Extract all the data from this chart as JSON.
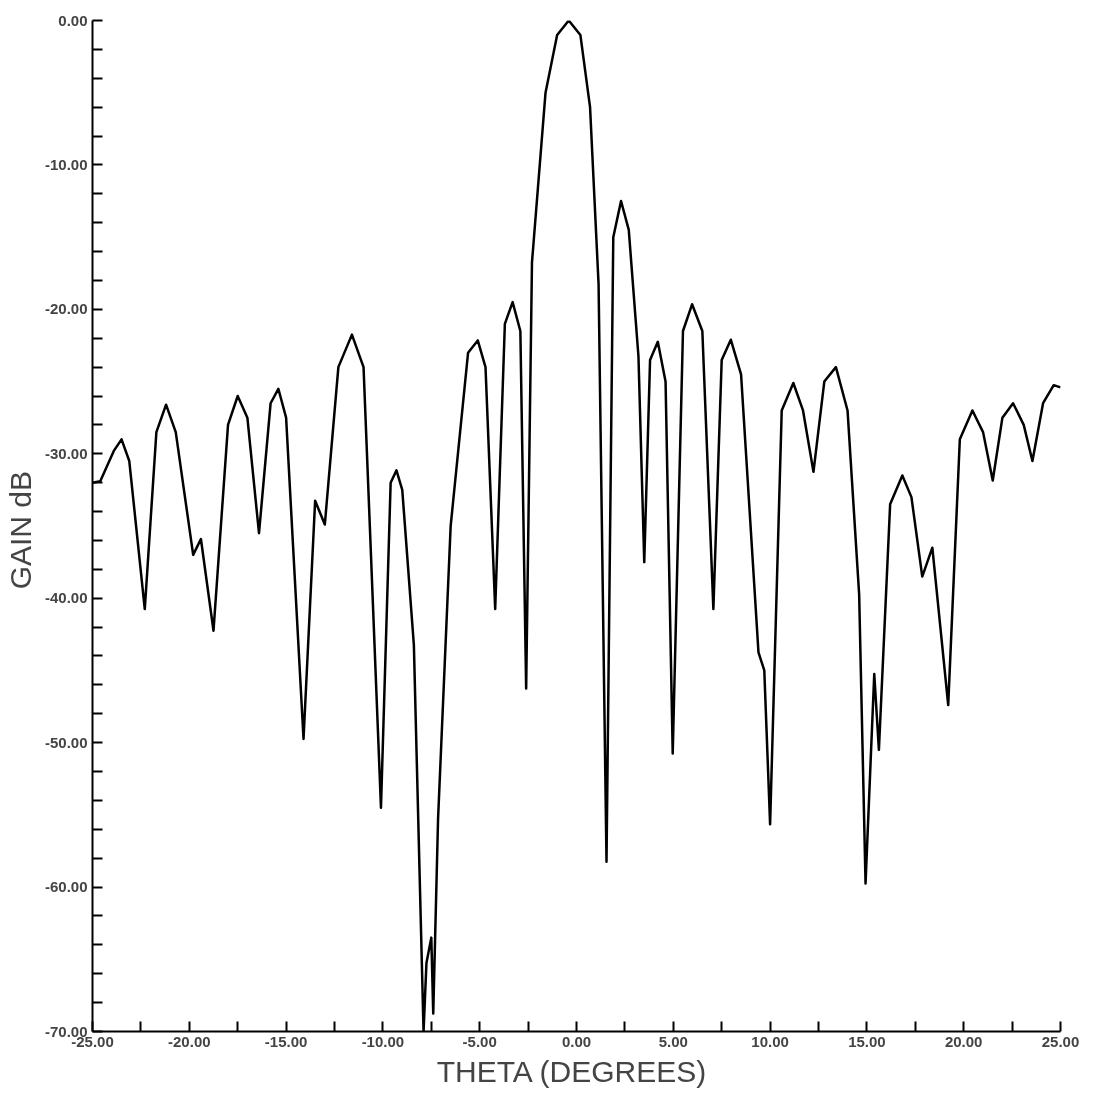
{
  "chart_data": {
    "type": "line",
    "xlabel": "THETA  (DEGREES)",
    "ylabel": "GAIN  dB",
    "x": [
      -25,
      -24.6,
      -23.9,
      -23.5,
      -23.1,
      -22.3,
      -21.7,
      -21.2,
      -20.7,
      -19.8,
      -19.4,
      -18.75,
      -18.0,
      -17.5,
      -17.0,
      -16.4,
      -15.8,
      -15.4,
      -15.0,
      -14.1,
      -13.5,
      -13.0,
      -12.3,
      -11.6,
      -11.0,
      -10.1,
      -9.6,
      -9.3,
      -9.0,
      -8.4,
      -7.9,
      -7.75,
      -7.5,
      -7.4,
      -7.15,
      -6.5,
      -5.6,
      -5.1,
      -4.7,
      -4.2,
      -3.7,
      -3.3,
      -2.9,
      -2.6,
      -2.3,
      -1.6,
      -1.0,
      -0.4,
      0.2,
      0.7,
      1.14,
      1.55,
      1.9,
      2.3,
      2.7,
      3.2,
      3.5,
      3.8,
      4.2,
      4.6,
      4.97,
      5.5,
      5.97,
      6.5,
      7.07,
      7.5,
      7.97,
      8.5,
      9.4,
      9.7,
      10.0,
      10.6,
      11.2,
      11.7,
      12.24,
      12.8,
      13.4,
      14.0,
      14.6,
      14.93,
      15.38,
      15.62,
      16.2,
      16.83,
      17.3,
      17.86,
      18.38,
      19.2,
      19.8,
      20.45,
      21.0,
      21.5,
      22.0,
      22.55,
      23.1,
      23.55,
      24.1,
      24.65,
      25
    ],
    "values": [
      -32.0,
      -31.9,
      -29.8,
      -29.0,
      -30.5,
      -40.75,
      -28.5,
      -26.6,
      -28.5,
      -37.0,
      -35.9,
      -42.25,
      -28.0,
      -26.0,
      -27.5,
      -35.5,
      -26.5,
      -25.5,
      -27.5,
      -49.75,
      -33.25,
      -34.9,
      -24.0,
      -21.75,
      -24.0,
      -54.5,
      -32.0,
      -31.15,
      -32.5,
      -43.25,
      -70,
      -65.25,
      -63.5,
      -68.75,
      -55.25,
      -35.0,
      -23.0,
      -22.15,
      -24.0,
      -40.75,
      -21.0,
      -19.5,
      -21.5,
      -46.25,
      -16.75,
      -5.0,
      -1.0,
      0,
      -1.0,
      -6.0,
      -18.25,
      -58.25,
      -15.0,
      -12.5,
      -14.5,
      -23.25,
      -37.5,
      -23.5,
      -22.25,
      -25.0,
      -50.75,
      -21.5,
      -19.65,
      -21.5,
      -40.75,
      -23.5,
      -22.1,
      -24.5,
      -43.75,
      -45.0,
      -55.65,
      -27.0,
      -25.1,
      -27.0,
      -31.25,
      -25.0,
      -24.0,
      -27.0,
      -39.75,
      -59.75,
      -45.25,
      -50.5,
      -33.5,
      -31.5,
      -33.0,
      -38.5,
      -36.5,
      -47.4,
      -29.0,
      -27.0,
      -28.5,
      -31.85,
      -27.5,
      -26.5,
      -28.0,
      -30.5,
      -26.5,
      -25.25,
      -25.4
    ],
    "color": "#000000",
    "line_style": "solid",
    "grid": false,
    "xlim": [
      -25,
      25
    ],
    "ylim": [
      -70,
      0
    ],
    "xticks": [
      {
        "value": -25,
        "label": "-25.00"
      },
      {
        "value": -22.5,
        "label": null
      },
      {
        "value": -20,
        "label": "-20.00"
      },
      {
        "value": -17.5,
        "label": null
      },
      {
        "value": -15,
        "label": "-15.00"
      },
      {
        "value": -12.5,
        "label": null
      },
      {
        "value": -10,
        "label": "-10.00"
      },
      {
        "value": -7.5,
        "label": null
      },
      {
        "value": -5,
        "label": "-5.00"
      },
      {
        "value": -2.5,
        "label": null
      },
      {
        "value": 0,
        "label": "0.00"
      },
      {
        "value": 2.5,
        "label": null
      },
      {
        "value": 5,
        "label": "5.00"
      },
      {
        "value": 7.5,
        "label": null
      },
      {
        "value": 10,
        "label": "10.00"
      },
      {
        "value": 12.5,
        "label": null
      },
      {
        "value": 15,
        "label": "15.00"
      },
      {
        "value": 17.5,
        "label": null
      },
      {
        "value": 20,
        "label": "20.00"
      },
      {
        "value": 22.5,
        "label": null
      },
      {
        "value": 25,
        "label": "25.00"
      }
    ],
    "yticks": [
      {
        "value": 0,
        "label": "0.00"
      },
      {
        "value": -2,
        "label": null
      },
      {
        "value": -4,
        "label": null
      },
      {
        "value": -6,
        "label": null
      },
      {
        "value": -8,
        "label": null
      },
      {
        "value": -10,
        "label": "-10.00"
      },
      {
        "value": -12,
        "label": null
      },
      {
        "value": -14,
        "label": null
      },
      {
        "value": -16,
        "label": null
      },
      {
        "value": -18,
        "label": null
      },
      {
        "value": -20,
        "label": "-20.00"
      },
      {
        "value": -22,
        "label": null
      },
      {
        "value": -24,
        "label": null
      },
      {
        "value": -26,
        "label": null
      },
      {
        "value": -28,
        "label": null
      },
      {
        "value": -30,
        "label": "-30.00"
      },
      {
        "value": -32,
        "label": null
      },
      {
        "value": -34,
        "label": null
      },
      {
        "value": -36,
        "label": null
      },
      {
        "value": -38,
        "label": null
      },
      {
        "value": -40,
        "label": "-40.00"
      },
      {
        "value": -42,
        "label": null
      },
      {
        "value": -44,
        "label": null
      },
      {
        "value": -46,
        "label": null
      },
      {
        "value": -48,
        "label": null
      },
      {
        "value": -50,
        "label": "-50.00"
      },
      {
        "value": -52,
        "label": null
      },
      {
        "value": -54,
        "label": null
      },
      {
        "value": -56,
        "label": null
      },
      {
        "value": -58,
        "label": null
      },
      {
        "value": -60,
        "label": "-60.00"
      },
      {
        "value": -62,
        "label": null
      },
      {
        "value": -64,
        "label": null
      },
      {
        "value": -66,
        "label": null
      },
      {
        "value": -68,
        "label": null
      },
      {
        "value": -70,
        "label": "-70.00"
      }
    ]
  }
}
